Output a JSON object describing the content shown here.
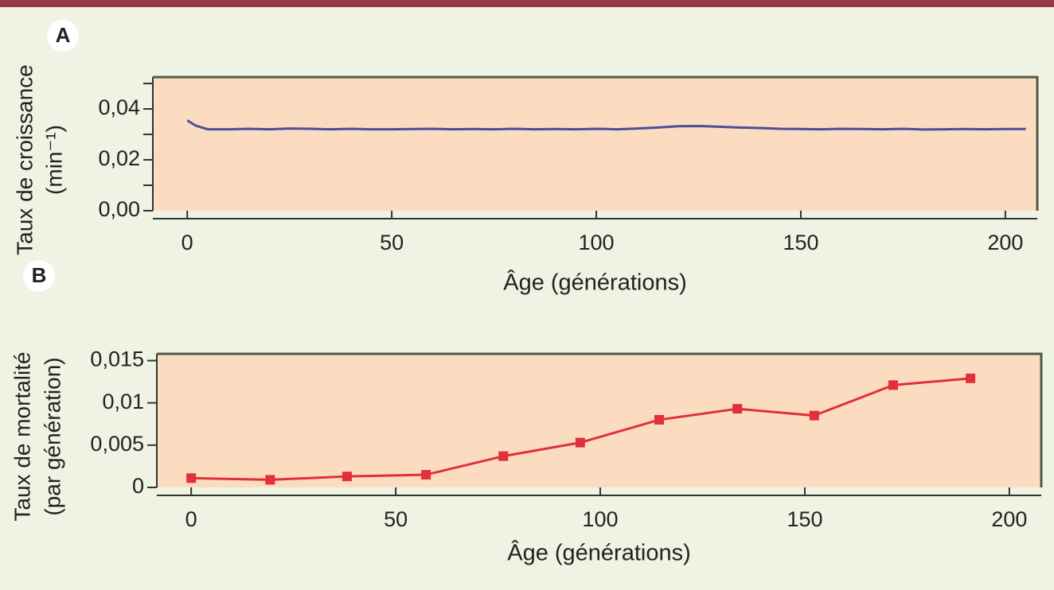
{
  "chart_data": [
    {
      "type": "line",
      "panel": "A",
      "ylabel": "Taux de croissance",
      "ylabel_unit": "(min⁻¹)",
      "xlabel": "Âge (générations)",
      "x": [
        0,
        2,
        5,
        10,
        15,
        20,
        25,
        30,
        35,
        40,
        45,
        50,
        55,
        60,
        65,
        70,
        75,
        80,
        85,
        90,
        95,
        100,
        105,
        110,
        115,
        120,
        125,
        130,
        135,
        140,
        145,
        150,
        155,
        160,
        165,
        170,
        175,
        180,
        185,
        190,
        195,
        200,
        205
      ],
      "series": [
        {
          "color": "#4a4f9a",
          "values": [
            0.0355,
            0.0335,
            0.032,
            0.032,
            0.0322,
            0.032,
            0.0323,
            0.0322,
            0.032,
            0.0322,
            0.032,
            0.032,
            0.0321,
            0.0322,
            0.032,
            0.0321,
            0.032,
            0.0322,
            0.032,
            0.0321,
            0.032,
            0.0322,
            0.032,
            0.0323,
            0.0327,
            0.0332,
            0.0333,
            0.033,
            0.0327,
            0.0325,
            0.0322,
            0.0321,
            0.032,
            0.0322,
            0.0321,
            0.032,
            0.0322,
            0.0319,
            0.032,
            0.0321,
            0.032,
            0.0321,
            0.0321
          ]
        }
      ],
      "xlim": [
        -8.4,
        207.8
      ],
      "ylim": [
        0,
        0.0525
      ],
      "xticks": [
        0,
        50,
        100,
        150,
        200
      ],
      "yticks": [
        {
          "value": 0,
          "label": "0,00"
        },
        {
          "value": 0.02,
          "label": "0,02"
        },
        {
          "value": 0.04,
          "label": "0,04"
        }
      ],
      "yminor": [
        0.01,
        0.03,
        0.05
      ]
    },
    {
      "type": "line",
      "panel": "B",
      "markers": true,
      "ylabel": "Taux de mortalité",
      "ylabel_unit": "(par génération)",
      "xlabel": "Âge (générations)",
      "x": [
        0,
        19.3,
        38.1,
        57.4,
        76.3,
        95.1,
        114.4,
        133.5,
        152.3,
        171.6,
        190.5
      ],
      "series": [
        {
          "color": "#e0303a",
          "values": [
            0.0011,
            0.0009,
            0.0013,
            0.0015,
            0.0037,
            0.0053,
            0.008,
            0.0093,
            0.0085,
            0.0121,
            0.0129
          ]
        }
      ],
      "xlim": [
        -8.4,
        207.8
      ],
      "ylim": [
        0,
        0.0158
      ],
      "xticks": [
        0,
        50,
        100,
        150,
        200
      ],
      "yticks": [
        0,
        {
          "value": 0.005,
          "label": "0,005"
        },
        {
          "value": 0.01,
          "label": "0,01"
        },
        {
          "value": 0.015,
          "label": "0,015"
        }
      ]
    }
  ]
}
